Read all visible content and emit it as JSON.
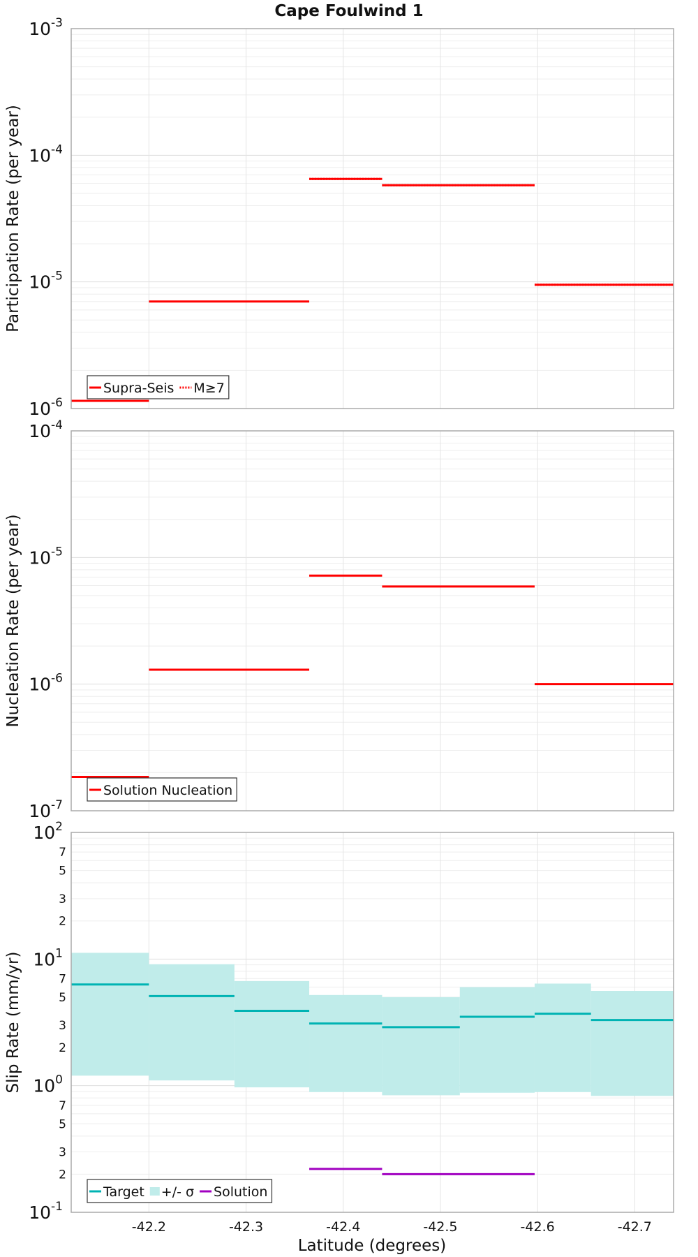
{
  "title": "Cape Foulwind 1",
  "xlabel": "Latitude (degrees)",
  "x_ticks": [
    -42.2,
    -42.3,
    -42.4,
    -42.5,
    -42.6,
    -42.7
  ],
  "xlim": [
    -42.12,
    -42.74
  ],
  "chart_data": [
    {
      "type": "line",
      "ylabel": "Participation Rate (per year)",
      "yscale": "log",
      "ylim": [
        1e-06,
        0.001
      ],
      "grid": true,
      "legend_position": "bottom-left",
      "legend": [
        {
          "label": "Supra-Seis",
          "style": "solid",
          "color": "#ff0000"
        },
        {
          "label": "M≥7",
          "style": "dotted",
          "color": "#ff0000"
        }
      ],
      "series": [
        {
          "name": "Supra-Seis",
          "style": "solid",
          "color": "#ff0000",
          "segments": [
            {
              "x0": -42.12,
              "x1": -42.2,
              "y": 1.15e-06
            },
            {
              "x0": -42.2,
              "x1": -42.365,
              "y": 7e-06
            },
            {
              "x0": -42.365,
              "x1": -42.44,
              "y": 6.5e-05
            },
            {
              "x0": -42.44,
              "x1": -42.597,
              "y": 5.8e-05
            },
            {
              "x0": -42.597,
              "x1": -42.74,
              "y": 9.5e-06
            }
          ]
        },
        {
          "name": "M≥7",
          "style": "dotted",
          "color": "#ff0000",
          "segments": [
            {
              "x0": -42.365,
              "x1": -42.44,
              "y": 6.5e-05
            },
            {
              "x0": -42.44,
              "x1": -42.597,
              "y": 5.8e-05
            },
            {
              "x0": -42.597,
              "x1": -42.74,
              "y": 9.5e-06
            }
          ]
        }
      ]
    },
    {
      "type": "line",
      "ylabel": "Nucleation Rate (per year)",
      "yscale": "log",
      "ylim": [
        1e-07,
        0.0001
      ],
      "grid": true,
      "legend_position": "bottom-left",
      "legend": [
        {
          "label": "Solution Nucleation",
          "style": "solid",
          "color": "#ff0000"
        }
      ],
      "series": [
        {
          "name": "Solution Nucleation",
          "style": "solid",
          "color": "#ff0000",
          "segments": [
            {
              "x0": -42.12,
              "x1": -42.2,
              "y": 1.85e-07
            },
            {
              "x0": -42.2,
              "x1": -42.365,
              "y": 1.3e-06
            },
            {
              "x0": -42.365,
              "x1": -42.44,
              "y": 7.2e-06
            },
            {
              "x0": -42.44,
              "x1": -42.597,
              "y": 5.9e-06
            },
            {
              "x0": -42.597,
              "x1": -42.74,
              "y": 1e-06
            }
          ]
        }
      ]
    },
    {
      "type": "line",
      "ylabel": "Slip Rate (mm/yr)",
      "yscale": "log",
      "ylim": [
        0.1,
        100
      ],
      "grid": true,
      "legend_position": "bottom-left",
      "legend": [
        {
          "label": "Target",
          "style": "solid",
          "color": "#00b3b3"
        },
        {
          "label": "+/- σ",
          "style": "band",
          "color": "#c0ecea"
        },
        {
          "label": "Solution",
          "style": "solid",
          "color": "#a100c0"
        }
      ],
      "band": {
        "name": "+/- σ",
        "color": "#c0ecea",
        "segments": [
          {
            "x0": -42.12,
            "x1": -42.2,
            "lo": 1.2,
            "hi": 11.2
          },
          {
            "x0": -42.2,
            "x1": -42.288,
            "lo": 1.1,
            "hi": 9.1
          },
          {
            "x0": -42.288,
            "x1": -42.365,
            "lo": 0.97,
            "hi": 6.7
          },
          {
            "x0": -42.365,
            "x1": -42.44,
            "lo": 0.89,
            "hi": 5.2
          },
          {
            "x0": -42.44,
            "x1": -42.52,
            "lo": 0.84,
            "hi": 5.0
          },
          {
            "x0": -42.52,
            "x1": -42.597,
            "lo": 0.88,
            "hi": 6.0
          },
          {
            "x0": -42.597,
            "x1": -42.655,
            "lo": 0.89,
            "hi": 6.4
          },
          {
            "x0": -42.655,
            "x1": -42.74,
            "lo": 0.83,
            "hi": 5.6
          }
        ]
      },
      "series": [
        {
          "name": "Target",
          "style": "solid",
          "color": "#00b3b3",
          "segments": [
            {
              "x0": -42.12,
              "x1": -42.2,
              "y": 6.3
            },
            {
              "x0": -42.2,
              "x1": -42.288,
              "y": 5.1
            },
            {
              "x0": -42.288,
              "x1": -42.365,
              "y": 3.9
            },
            {
              "x0": -42.365,
              "x1": -42.44,
              "y": 3.1
            },
            {
              "x0": -42.44,
              "x1": -42.52,
              "y": 2.9
            },
            {
              "x0": -42.52,
              "x1": -42.597,
              "y": 3.5
            },
            {
              "x0": -42.597,
              "x1": -42.655,
              "y": 3.7
            },
            {
              "x0": -42.655,
              "x1": -42.74,
              "y": 3.3
            }
          ]
        },
        {
          "name": "Solution",
          "style": "solid",
          "color": "#a100c0",
          "segments": [
            {
              "x0": -42.365,
              "x1": -42.44,
              "y": 0.22
            },
            {
              "x0": -42.44,
              "x1": -42.597,
              "y": 0.2
            }
          ]
        }
      ]
    }
  ]
}
